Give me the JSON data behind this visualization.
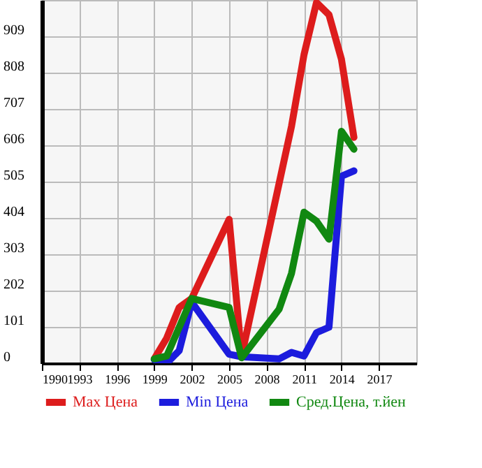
{
  "chart_data": {
    "type": "line",
    "series": [
      {
        "name": "Max Цена",
        "color": "#dd1c1c",
        "x": [
          1999,
          2000,
          2001,
          2002,
          2005,
          2006,
          2010,
          2011,
          2012,
          2013,
          2014,
          2015
        ],
        "values": [
          12,
          70,
          155,
          180,
          400,
          20,
          659,
          858,
          1003,
          969,
          845,
          628
        ]
      },
      {
        "name": "Min Цена",
        "color": "#1c1cdd",
        "x": [
          1999,
          2000,
          2001,
          2002,
          2005,
          2006,
          2009,
          2010,
          2011,
          2012,
          2013,
          2014,
          2015
        ],
        "values": [
          10,
          0,
          35,
          170,
          25,
          18,
          12,
          30,
          20,
          85,
          100,
          520,
          535
        ]
      },
      {
        "name": "Сред.Цена, т.йен",
        "color": "#118811",
        "x": [
          1999,
          2000,
          2002,
          2005,
          2006,
          2009,
          2010,
          2011,
          2012,
          2013,
          2014,
          2015
        ],
        "values": [
          12,
          20,
          180,
          155,
          15,
          150,
          250,
          420,
          395,
          345,
          645,
          595
        ]
      }
    ],
    "xlim": [
      1990,
      2020
    ],
    "xticks": [
      1990,
      1993,
      1996,
      1999,
      2002,
      2005,
      2008,
      2011,
      2014,
      2017
    ],
    "ylim": [
      0,
      1010
    ],
    "yticks": [
      0,
      101,
      202,
      303,
      404,
      505,
      606,
      707,
      808,
      909
    ],
    "grid": true,
    "legend": "bottom",
    "marker": "none",
    "line_style": "solid"
  }
}
